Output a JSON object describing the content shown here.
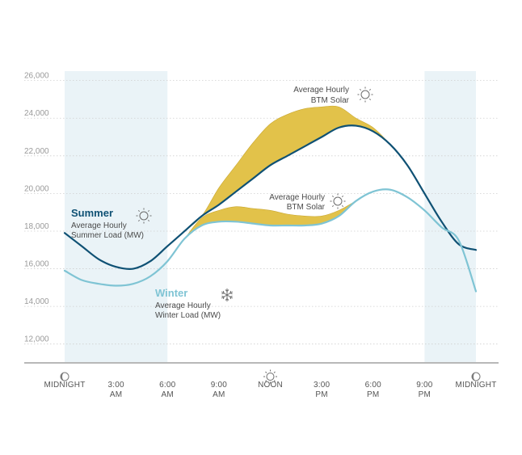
{
  "chart_data": {
    "type": "area",
    "title": "",
    "xlabel": "",
    "ylabel": "",
    "ylim": [
      11000,
      26500
    ],
    "yticks": [
      12000,
      14000,
      16000,
      18000,
      20000,
      22000,
      24000,
      26000
    ],
    "ytick_labels": [
      "12,000",
      "14,000",
      "16,000",
      "18,000",
      "20,000",
      "22,000",
      "24,000",
      "26,000"
    ],
    "xlim": [
      0,
      24
    ],
    "x_ticks": [
      {
        "x": 0,
        "line1": "MIDNIGHT",
        "line2": "",
        "icon": "moon-icon"
      },
      {
        "x": 3,
        "line1": "3:00",
        "line2": "AM",
        "icon": ""
      },
      {
        "x": 6,
        "line1": "6:00",
        "line2": "AM",
        "icon": ""
      },
      {
        "x": 9,
        "line1": "9:00",
        "line2": "AM",
        "icon": ""
      },
      {
        "x": 12,
        "line1": "NOON",
        "line2": "",
        "icon": "sun-icon"
      },
      {
        "x": 15,
        "line1": "3:00",
        "line2": "PM",
        "icon": ""
      },
      {
        "x": 18,
        "line1": "6:00",
        "line2": "PM",
        "icon": ""
      },
      {
        "x": 21,
        "line1": "9:00",
        "line2": "PM",
        "icon": ""
      },
      {
        "x": 24,
        "line1": "MIDNIGHT",
        "line2": "",
        "icon": "moon-icon"
      }
    ],
    "night_bands": [
      [
        0,
        6
      ],
      [
        21,
        24
      ]
    ],
    "x": [
      0,
      1,
      2,
      3,
      4,
      5,
      6,
      7,
      8,
      9,
      10,
      11,
      12,
      13,
      14,
      15,
      16,
      17,
      18,
      19,
      20,
      21,
      22,
      23
    ],
    "series": [
      {
        "name": "Summer",
        "subtitle_line1": "Average Hourly",
        "subtitle_line2": "Summer Load (MW)",
        "color": "#0f5174",
        "values": [
          17900,
          17200,
          16500,
          16100,
          16000,
          16400,
          17200,
          18000,
          18800,
          19400,
          20100,
          20800,
          21500,
          22000,
          22500,
          23000,
          23500,
          23600,
          23300,
          22600,
          21500,
          20000,
          18500,
          17300
        ],
        "btm_solar_values": [
          17900,
          17200,
          16500,
          16100,
          16000,
          16400,
          17200,
          18000,
          18800,
          20300,
          21500,
          22700,
          23700,
          24200,
          24500,
          24600,
          24600,
          24000,
          23500,
          22600,
          21500,
          20000,
          18500,
          17300
        ]
      },
      {
        "name": "Winter",
        "subtitle_line1": "Average Hourly",
        "subtitle_line2": "Winter Load (MW)",
        "color": "#7fc4d4",
        "values": [
          15900,
          15400,
          15200,
          15100,
          15200,
          15600,
          16400,
          17600,
          18300,
          18500,
          18500,
          18400,
          18300,
          18300,
          18300,
          18400,
          18800,
          19600,
          20100,
          20200,
          19800,
          19100,
          18200,
          17500
        ],
        "btm_solar_values": [
          15900,
          15400,
          15200,
          15100,
          15200,
          15600,
          16400,
          17600,
          18700,
          19100,
          19300,
          19200,
          19100,
          18900,
          18800,
          18800,
          19100,
          19600,
          20100,
          20200,
          19800,
          19100,
          18200,
          17500
        ]
      }
    ],
    "annotations": [
      {
        "name": "summer-btm-solar",
        "line1": "Average Hourly",
        "line2": "BTM Solar",
        "icon": "sun-icon"
      },
      {
        "name": "winter-btm-solar",
        "line1": "Average Hourly",
        "line2": "BTM Solar",
        "icon": "sun-icon"
      }
    ],
    "colors": {
      "solar_fill": "#e2c24a",
      "solar_stroke": "#c9a730",
      "night_band": "#eaf3f7",
      "grid": "#cfcfcf",
      "axis": "#b8b8b8"
    }
  }
}
